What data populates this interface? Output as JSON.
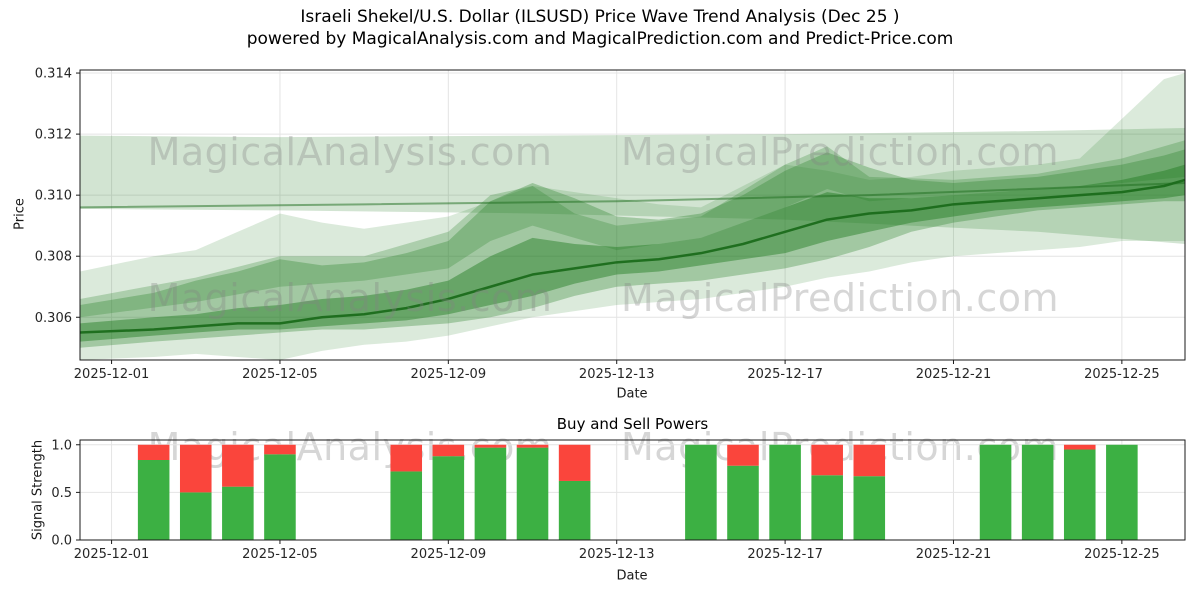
{
  "title": {
    "line1": "Israeli Shekel/U.S. Dollar (ILSUSD) Price Wave Trend Analysis (Dec 25 )",
    "line2": "powered by MagicalAnalysis.com and MagicalPrediction.com and Predict-Price.com"
  },
  "watermark": {
    "left": "MagicalAnalysis.com",
    "right": "MagicalPrediction.com",
    "color": "rgba(130,130,130,0.33)"
  },
  "chart_data": [
    {
      "type": "area",
      "name": "price-wave-trend",
      "xlabel": "Date",
      "ylabel": "Price",
      "band_color": "#1f7a1f",
      "xlim": [
        -0.75,
        25.5
      ],
      "ylim": [
        0.3046,
        0.3141
      ],
      "x_ticks": [
        {
          "day": 0,
          "label": "2025-12-01"
        },
        {
          "day": 4,
          "label": "2025-12-05"
        },
        {
          "day": 8,
          "label": "2025-12-09"
        },
        {
          "day": 12,
          "label": "2025-12-13"
        },
        {
          "day": 16,
          "label": "2025-12-17"
        },
        {
          "day": 20,
          "label": "2025-12-21"
        },
        {
          "day": 24,
          "label": "2025-12-25"
        }
      ],
      "y_ticks": [
        {
          "v": 0.306,
          "label": "0.306"
        },
        {
          "v": 0.308,
          "label": "0.308"
        },
        {
          "v": 0.31,
          "label": "0.310"
        },
        {
          "v": 0.312,
          "label": "0.312"
        },
        {
          "v": 0.314,
          "label": "0.314"
        }
      ],
      "bands": [
        {
          "name": "ceiling",
          "opacity": 0.2,
          "x": [
            -0.75,
            4,
            10,
            16,
            22,
            25.5
          ],
          "lo": [
            0.30955,
            0.3095,
            0.3094,
            0.3092,
            0.3088,
            0.3084
          ],
          "hi": [
            0.31195,
            0.3119,
            0.31195,
            0.312,
            0.3121,
            0.3122
          ]
        },
        {
          "name": "wide-rising",
          "opacity": 0.16,
          "x": [
            -0.75,
            1,
            2,
            3,
            4,
            5,
            6,
            7,
            8,
            9,
            10,
            11,
            12,
            13,
            14,
            15,
            16,
            17,
            18,
            19,
            20,
            21,
            22,
            23,
            24,
            25,
            25.5
          ],
          "lo": [
            0.3046,
            0.3047,
            0.3048,
            0.3047,
            0.3046,
            0.3049,
            0.3051,
            0.3052,
            0.3054,
            0.3057,
            0.306,
            0.3062,
            0.3064,
            0.3065,
            0.3066,
            0.3068,
            0.307,
            0.3073,
            0.3075,
            0.3078,
            0.308,
            0.3081,
            0.3082,
            0.3083,
            0.3085,
            0.3085,
            0.3085
          ],
          "hi": [
            0.3075,
            0.308,
            0.3082,
            0.3088,
            0.3094,
            0.3091,
            0.3089,
            0.3091,
            0.3093,
            0.3098,
            0.3103,
            0.3101,
            0.3099,
            0.3097,
            0.3096,
            0.3103,
            0.311,
            0.3108,
            0.3105,
            0.3106,
            0.3108,
            0.3109,
            0.311,
            0.3112,
            0.3125,
            0.3138,
            0.314
          ]
        },
        {
          "name": "mid-wave",
          "opacity": 0.3,
          "x": [
            -0.75,
            1,
            2,
            3,
            4,
            5,
            6,
            7,
            8,
            9,
            10,
            11,
            12,
            13,
            14,
            15,
            16,
            17,
            18,
            19,
            20,
            21,
            22,
            23,
            24,
            25,
            25.5
          ],
          "lo": [
            0.305,
            0.3052,
            0.3053,
            0.3054,
            0.3055,
            0.3056,
            0.3056,
            0.3057,
            0.3058,
            0.306,
            0.3063,
            0.3067,
            0.307,
            0.3071,
            0.3072,
            0.3074,
            0.3076,
            0.3079,
            0.3083,
            0.3088,
            0.3091,
            0.3093,
            0.3095,
            0.3096,
            0.3097,
            0.3098,
            0.3098
          ],
          "hi": [
            0.3064,
            0.3068,
            0.3072,
            0.3075,
            0.3079,
            0.3077,
            0.3078,
            0.3081,
            0.3085,
            0.3098,
            0.3104,
            0.3099,
            0.3093,
            0.3092,
            0.3094,
            0.31,
            0.3108,
            0.3114,
            0.3109,
            0.3105,
            0.3104,
            0.3105,
            0.3106,
            0.3108,
            0.311,
            0.3113,
            0.3115
          ]
        },
        {
          "name": "upper-wave",
          "opacity": 0.25,
          "x": [
            -0.75,
            2,
            4,
            6,
            8,
            9,
            10,
            11,
            12,
            14,
            16,
            17,
            18,
            20,
            22,
            24,
            25.5
          ],
          "lo": [
            0.306,
            0.3065,
            0.307,
            0.3072,
            0.3076,
            0.3085,
            0.309,
            0.3086,
            0.3082,
            0.3086,
            0.3096,
            0.3102,
            0.3098,
            0.31,
            0.3102,
            0.3104,
            0.3106
          ],
          "hi": [
            0.3066,
            0.3073,
            0.308,
            0.308,
            0.3088,
            0.31,
            0.3103,
            0.3094,
            0.309,
            0.3093,
            0.311,
            0.3116,
            0.3106,
            0.3105,
            0.3107,
            0.3112,
            0.3118
          ]
        },
        {
          "name": "core",
          "opacity": 0.45,
          "x": [
            -0.75,
            1,
            2,
            3,
            4,
            5,
            6,
            7,
            8,
            9,
            10,
            11,
            12,
            13,
            14,
            15,
            16,
            17,
            18,
            19,
            20,
            21,
            22,
            23,
            24,
            25,
            25.5
          ],
          "lo": [
            0.3052,
            0.3054,
            0.3055,
            0.3056,
            0.3056,
            0.3057,
            0.3058,
            0.3059,
            0.3061,
            0.3064,
            0.3067,
            0.3071,
            0.3074,
            0.3075,
            0.3077,
            0.3079,
            0.3081,
            0.3085,
            0.3088,
            0.3091,
            0.3093,
            0.3095,
            0.3096,
            0.3097,
            0.3098,
            0.3099,
            0.31
          ],
          "hi": [
            0.3058,
            0.306,
            0.3061,
            0.3063,
            0.3064,
            0.3066,
            0.3067,
            0.3069,
            0.3072,
            0.308,
            0.3086,
            0.3084,
            0.3083,
            0.3084,
            0.3086,
            0.3091,
            0.3096,
            0.3101,
            0.3099,
            0.3099,
            0.31,
            0.3101,
            0.3102,
            0.3103,
            0.3105,
            0.3108,
            0.311
          ]
        }
      ],
      "lines": [
        {
          "name": "median",
          "color": "#1b6b1b",
          "width": 2.5,
          "opacity": 0.95,
          "x": [
            -0.75,
            1,
            2,
            3,
            4,
            5,
            6,
            7,
            8,
            9,
            10,
            11,
            12,
            13,
            14,
            15,
            16,
            17,
            18,
            19,
            20,
            21,
            22,
            23,
            24,
            25,
            25.5
          ],
          "y": [
            0.3055,
            0.3056,
            0.3057,
            0.3058,
            0.3058,
            0.306,
            0.3061,
            0.3063,
            0.3066,
            0.307,
            0.3074,
            0.3076,
            0.3078,
            0.3079,
            0.3081,
            0.3084,
            0.3088,
            0.3092,
            0.3094,
            0.3095,
            0.3097,
            0.3098,
            0.3099,
            0.31,
            0.3101,
            0.3103,
            0.3105
          ]
        },
        {
          "name": "upper-trend",
          "color": "#1b6b1b",
          "width": 2,
          "opacity": 0.5,
          "x": [
            -0.75,
            6,
            12,
            18,
            25.5
          ],
          "y": [
            0.3096,
            0.3097,
            0.3098,
            0.31,
            0.3104
          ]
        }
      ]
    },
    {
      "type": "bar",
      "name": "buy-sell-powers",
      "title": "Buy and Sell Powers",
      "xlabel": "Date",
      "ylabel": "Signal Strength",
      "buy_color": "#3cb043",
      "sell_color": "#fa453c",
      "bar_width_days": 0.75,
      "xlim": [
        -0.75,
        25.5
      ],
      "ylim": [
        0,
        1.05
      ],
      "x_ticks": [
        {
          "day": 0,
          "label": "2025-12-01"
        },
        {
          "day": 4,
          "label": "2025-12-05"
        },
        {
          "day": 8,
          "label": "2025-12-09"
        },
        {
          "day": 12,
          "label": "2025-12-13"
        },
        {
          "day": 16,
          "label": "2025-12-17"
        },
        {
          "day": 20,
          "label": "2025-12-21"
        },
        {
          "day": 24,
          "label": "2025-12-25"
        }
      ],
      "y_ticks": [
        {
          "v": 0.0,
          "label": "0.0"
        },
        {
          "v": 0.5,
          "label": "0.5"
        },
        {
          "v": 1.0,
          "label": "1.0"
        }
      ],
      "bars": [
        {
          "date": "2025-12-02",
          "day": 1,
          "buy": 0.84,
          "sell": 0.16
        },
        {
          "date": "2025-12-03",
          "day": 2,
          "buy": 0.5,
          "sell": 0.5
        },
        {
          "date": "2025-12-04",
          "day": 3,
          "buy": 0.56,
          "sell": 0.44
        },
        {
          "date": "2025-12-05",
          "day": 4,
          "buy": 0.9,
          "sell": 0.1
        },
        {
          "date": "2025-12-08",
          "day": 7,
          "buy": 0.72,
          "sell": 0.28
        },
        {
          "date": "2025-12-09",
          "day": 8,
          "buy": 0.88,
          "sell": 0.12
        },
        {
          "date": "2025-12-10",
          "day": 9,
          "buy": 0.97,
          "sell": 0.03
        },
        {
          "date": "2025-12-11",
          "day": 10,
          "buy": 0.97,
          "sell": 0.03
        },
        {
          "date": "2025-12-12",
          "day": 11,
          "buy": 0.62,
          "sell": 0.38
        },
        {
          "date": "2025-12-15",
          "day": 14,
          "buy": 1.0,
          "sell": 0.0
        },
        {
          "date": "2025-12-16",
          "day": 15,
          "buy": 0.78,
          "sell": 0.22
        },
        {
          "date": "2025-12-17",
          "day": 16,
          "buy": 1.0,
          "sell": 0.0
        },
        {
          "date": "2025-12-18",
          "day": 17,
          "buy": 0.68,
          "sell": 0.32
        },
        {
          "date": "2025-12-19",
          "day": 18,
          "buy": 0.67,
          "sell": 0.33
        },
        {
          "date": "2025-12-22",
          "day": 21,
          "buy": 1.0,
          "sell": 0.0
        },
        {
          "date": "2025-12-23",
          "day": 22,
          "buy": 1.0,
          "sell": 0.0
        },
        {
          "date": "2025-12-24",
          "day": 23,
          "buy": 0.95,
          "sell": 0.05
        },
        {
          "date": "2025-12-25",
          "day": 24,
          "buy": 1.0,
          "sell": 0.0
        }
      ]
    }
  ]
}
